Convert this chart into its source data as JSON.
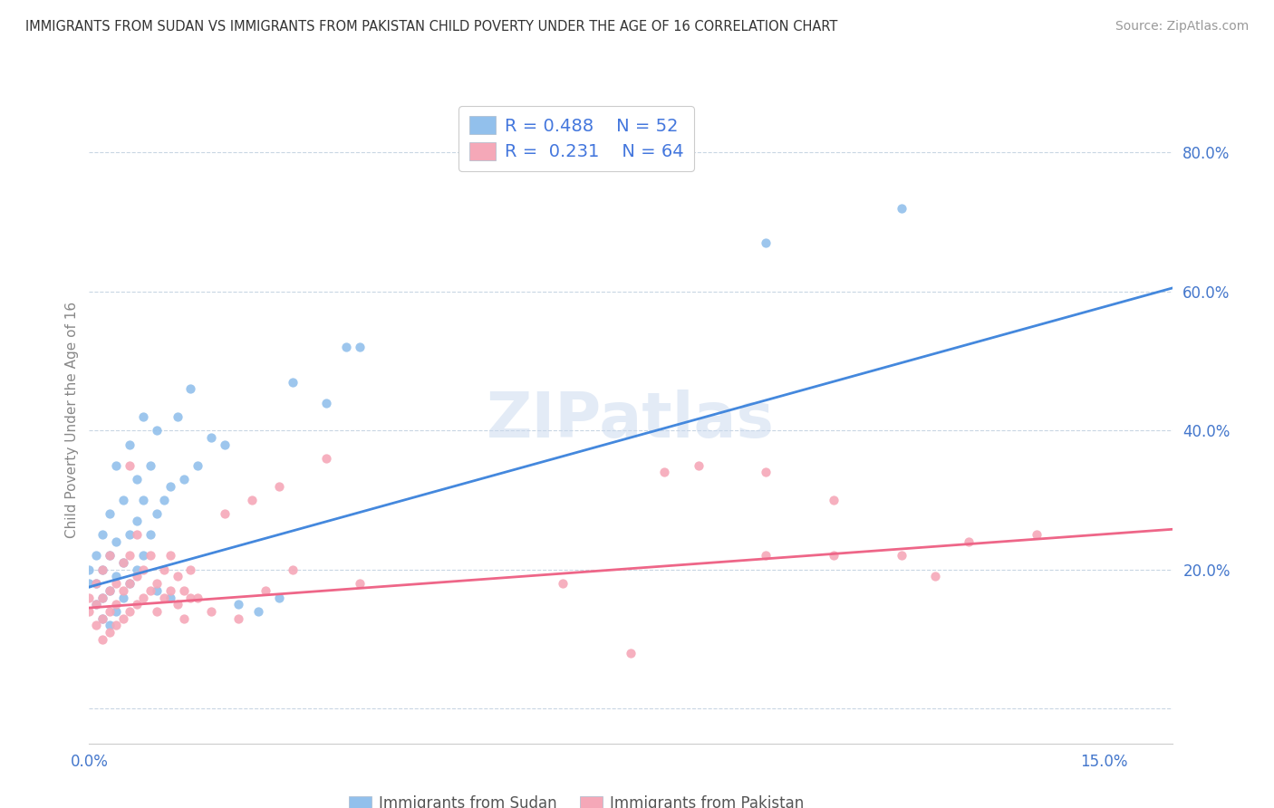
{
  "title": "IMMIGRANTS FROM SUDAN VS IMMIGRANTS FROM PAKISTAN CHILD POVERTY UNDER THE AGE OF 16 CORRELATION CHART",
  "source": "Source: ZipAtlas.com",
  "ylabel": "Child Poverty Under the Age of 16",
  "xlim": [
    0.0,
    0.16
  ],
  "ylim": [
    -0.05,
    0.88
  ],
  "sudan_R": 0.488,
  "sudan_N": 52,
  "pakistan_R": 0.231,
  "pakistan_N": 64,
  "sudan_color": "#92C0EC",
  "pakistan_color": "#F5A8B8",
  "sudan_line_color": "#4488DD",
  "pakistan_line_color": "#EE6688",
  "sudan_line_y0": 0.175,
  "sudan_line_y1": 0.605,
  "pak_line_y0": 0.145,
  "pak_line_y1": 0.258,
  "watermark": "ZIPatlas",
  "legend_label_sudan": "Immigrants from Sudan",
  "legend_label_pakistan": "Immigrants from Pakistan",
  "sudan_points": [
    [
      0.0,
      0.18
    ],
    [
      0.0,
      0.2
    ],
    [
      0.001,
      0.15
    ],
    [
      0.001,
      0.18
    ],
    [
      0.001,
      0.22
    ],
    [
      0.002,
      0.13
    ],
    [
      0.002,
      0.16
    ],
    [
      0.002,
      0.2
    ],
    [
      0.002,
      0.25
    ],
    [
      0.003,
      0.12
    ],
    [
      0.003,
      0.17
    ],
    [
      0.003,
      0.22
    ],
    [
      0.003,
      0.28
    ],
    [
      0.004,
      0.14
    ],
    [
      0.004,
      0.19
    ],
    [
      0.004,
      0.24
    ],
    [
      0.004,
      0.35
    ],
    [
      0.005,
      0.16
    ],
    [
      0.005,
      0.21
    ],
    [
      0.005,
      0.3
    ],
    [
      0.006,
      0.18
    ],
    [
      0.006,
      0.25
    ],
    [
      0.006,
      0.38
    ],
    [
      0.007,
      0.2
    ],
    [
      0.007,
      0.27
    ],
    [
      0.007,
      0.33
    ],
    [
      0.008,
      0.22
    ],
    [
      0.008,
      0.3
    ],
    [
      0.008,
      0.42
    ],
    [
      0.009,
      0.25
    ],
    [
      0.009,
      0.35
    ],
    [
      0.01,
      0.17
    ],
    [
      0.01,
      0.28
    ],
    [
      0.01,
      0.4
    ],
    [
      0.011,
      0.3
    ],
    [
      0.012,
      0.16
    ],
    [
      0.012,
      0.32
    ],
    [
      0.013,
      0.42
    ],
    [
      0.014,
      0.33
    ],
    [
      0.015,
      0.46
    ],
    [
      0.016,
      0.35
    ],
    [
      0.018,
      0.39
    ],
    [
      0.02,
      0.38
    ],
    [
      0.022,
      0.15
    ],
    [
      0.025,
      0.14
    ],
    [
      0.028,
      0.16
    ],
    [
      0.03,
      0.47
    ],
    [
      0.035,
      0.44
    ],
    [
      0.038,
      0.52
    ],
    [
      0.04,
      0.52
    ],
    [
      0.1,
      0.67
    ],
    [
      0.12,
      0.72
    ]
  ],
  "pakistan_points": [
    [
      0.0,
      0.14
    ],
    [
      0.0,
      0.16
    ],
    [
      0.001,
      0.12
    ],
    [
      0.001,
      0.15
    ],
    [
      0.001,
      0.18
    ],
    [
      0.002,
      0.1
    ],
    [
      0.002,
      0.13
    ],
    [
      0.002,
      0.16
    ],
    [
      0.002,
      0.2
    ],
    [
      0.003,
      0.11
    ],
    [
      0.003,
      0.14
    ],
    [
      0.003,
      0.17
    ],
    [
      0.003,
      0.22
    ],
    [
      0.004,
      0.12
    ],
    [
      0.004,
      0.15
    ],
    [
      0.004,
      0.18
    ],
    [
      0.005,
      0.13
    ],
    [
      0.005,
      0.17
    ],
    [
      0.005,
      0.21
    ],
    [
      0.006,
      0.14
    ],
    [
      0.006,
      0.18
    ],
    [
      0.006,
      0.22
    ],
    [
      0.006,
      0.35
    ],
    [
      0.007,
      0.15
    ],
    [
      0.007,
      0.19
    ],
    [
      0.007,
      0.25
    ],
    [
      0.008,
      0.16
    ],
    [
      0.008,
      0.2
    ],
    [
      0.009,
      0.17
    ],
    [
      0.009,
      0.22
    ],
    [
      0.01,
      0.14
    ],
    [
      0.01,
      0.18
    ],
    [
      0.011,
      0.16
    ],
    [
      0.011,
      0.2
    ],
    [
      0.012,
      0.17
    ],
    [
      0.012,
      0.22
    ],
    [
      0.013,
      0.15
    ],
    [
      0.013,
      0.19
    ],
    [
      0.014,
      0.13
    ],
    [
      0.014,
      0.17
    ],
    [
      0.015,
      0.16
    ],
    [
      0.015,
      0.2
    ],
    [
      0.016,
      0.16
    ],
    [
      0.018,
      0.14
    ],
    [
      0.02,
      0.28
    ],
    [
      0.022,
      0.13
    ],
    [
      0.024,
      0.3
    ],
    [
      0.026,
      0.17
    ],
    [
      0.028,
      0.32
    ],
    [
      0.03,
      0.2
    ],
    [
      0.035,
      0.36
    ],
    [
      0.04,
      0.18
    ],
    [
      0.07,
      0.18
    ],
    [
      0.08,
      0.08
    ],
    [
      0.085,
      0.34
    ],
    [
      0.09,
      0.35
    ],
    [
      0.1,
      0.22
    ],
    [
      0.1,
      0.34
    ],
    [
      0.11,
      0.22
    ],
    [
      0.11,
      0.3
    ],
    [
      0.12,
      0.22
    ],
    [
      0.125,
      0.19
    ],
    [
      0.13,
      0.24
    ],
    [
      0.14,
      0.25
    ]
  ]
}
